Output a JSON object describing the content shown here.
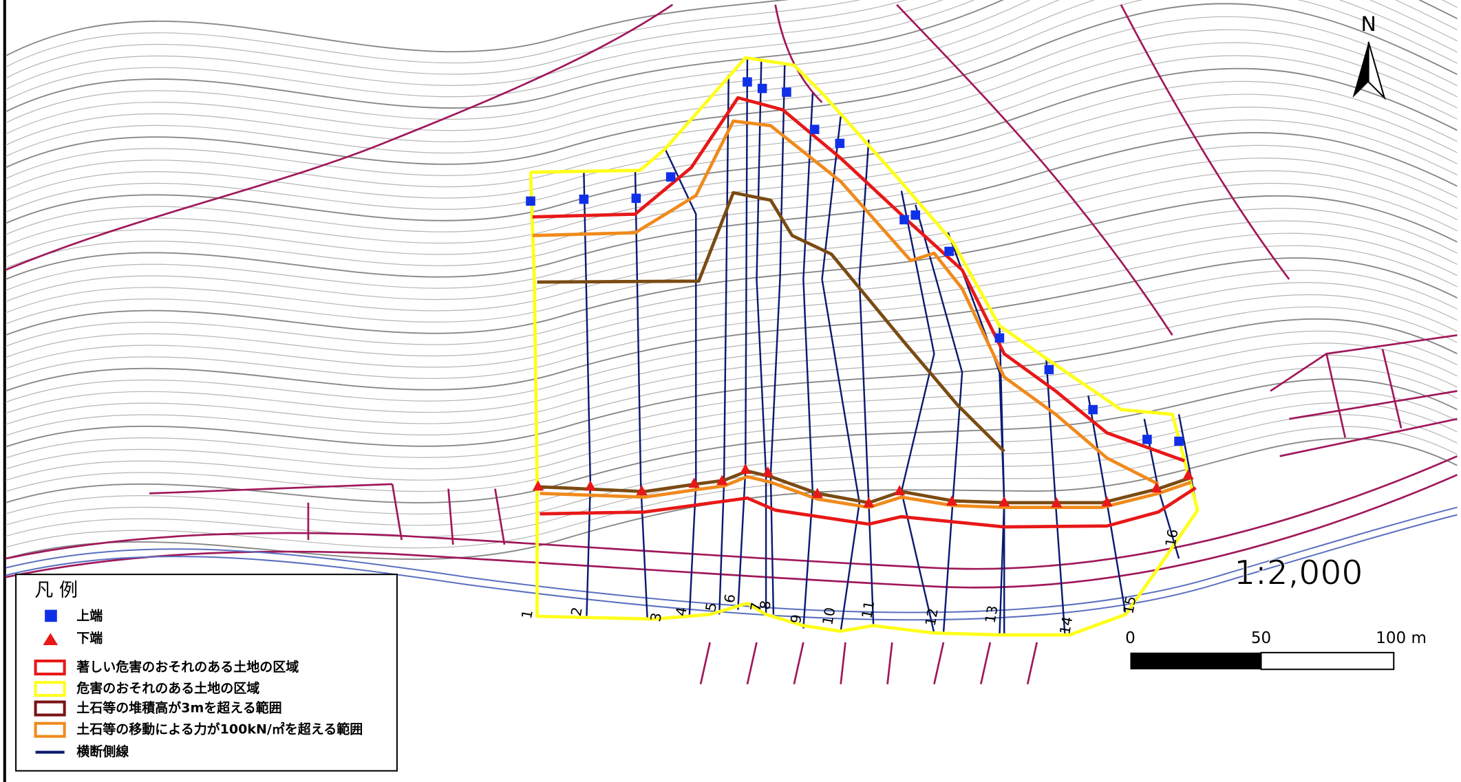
{
  "north": "N",
  "scale": {
    "ratio": "1:2,000",
    "ticks": [
      "0",
      "50",
      "100 m"
    ]
  },
  "sections": [
    "1",
    "2",
    "3",
    "4",
    "5",
    "6",
    "7",
    "8",
    "9",
    "10",
    "11",
    "12",
    "13",
    "14",
    "15",
    "16"
  ],
  "legend": {
    "title": "凡 例",
    "items": [
      {
        "label": "上端"
      },
      {
        "label": "下端"
      },
      {
        "label": "著しい危害のおそれのある土地の区域"
      },
      {
        "label": "危害のおそれのある土地の区域"
      },
      {
        "label": "土石等の堆積高が3mを超える範囲"
      },
      {
        "label": "土石等の移動による力が100kN/㎡を超える範囲"
      },
      {
        "label": "横断側線"
      }
    ]
  }
}
